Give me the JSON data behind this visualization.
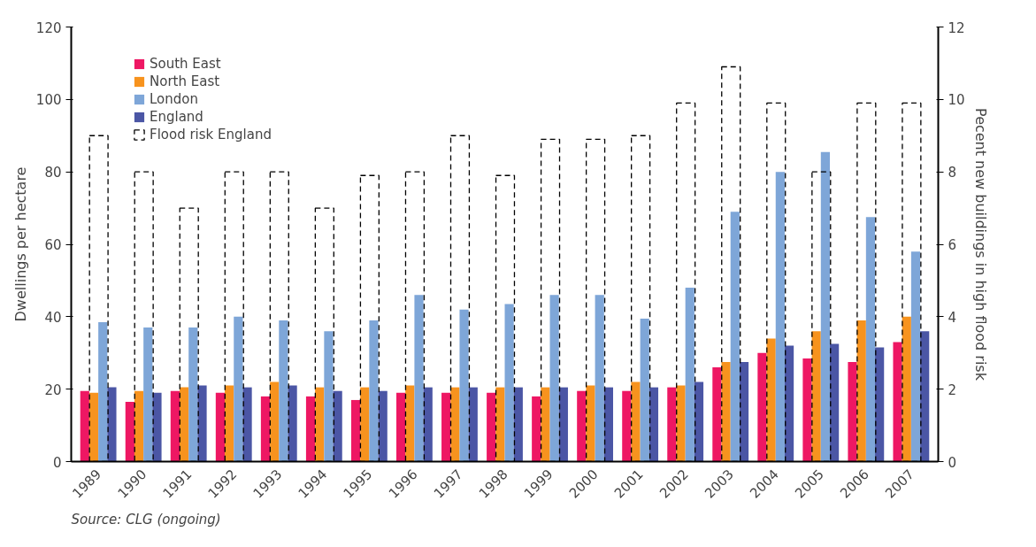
{
  "chart_data": {
    "type": "bar",
    "ylabel": "Dwellings per hectare",
    "y2label": "Pecent new buildings in high flood risk",
    "categories": [
      "1989",
      "1990",
      "1991",
      "1992",
      "1993",
      "1994",
      "1995",
      "1996",
      "1997",
      "1998",
      "1999",
      "2000",
      "2001",
      "2002",
      "2003",
      "2004",
      "2005",
      "2006",
      "2007"
    ],
    "series": [
      {
        "name": "South East",
        "color": "#ee1763",
        "values": [
          19.5,
          16.5,
          19.5,
          19,
          18,
          18,
          17,
          19,
          19,
          19,
          18,
          19.5,
          19.5,
          20.5,
          26,
          30,
          28.5,
          27.5,
          33
        ]
      },
      {
        "name": "North East",
        "color": "#f7931e",
        "values": [
          19,
          19.5,
          20.5,
          21,
          22,
          20.5,
          20.5,
          21,
          20.5,
          20.5,
          20.5,
          21,
          22,
          21,
          27.5,
          34,
          36,
          39,
          40
        ]
      },
      {
        "name": "London",
        "color": "#7ea6d8",
        "values": [
          38.5,
          37,
          37,
          40,
          39,
          36,
          39,
          46,
          42,
          43.5,
          46,
          46,
          39.5,
          48,
          69,
          80,
          85.5,
          67.5,
          58
        ]
      },
      {
        "name": "England",
        "color": "#4b56a5",
        "values": [
          20.5,
          19,
          21,
          20.5,
          21,
          19.5,
          19.5,
          20.5,
          20.5,
          20.5,
          20.5,
          20.5,
          20.5,
          22,
          27.5,
          32,
          32.5,
          31.5,
          36
        ]
      },
      {
        "name": "Flood risk England",
        "color": "#000000",
        "axis": "y2",
        "line_style": "dashed",
        "values": [
          9,
          8,
          7,
          8,
          8,
          7,
          7.9,
          8,
          9,
          7.9,
          8.9,
          8.9,
          9,
          9.9,
          10.9,
          9.9,
          8,
          9.9,
          9.9
        ]
      }
    ],
    "ylim": [
      0,
      120
    ],
    "yticks": [
      0,
      20,
      40,
      60,
      80,
      100,
      120
    ],
    "y2lim": [
      0,
      12
    ],
    "y2ticks": [
      0,
      2,
      4,
      6,
      8,
      10,
      12
    ],
    "grid": false,
    "legend": "top left",
    "annotations": [
      "Source: CLG (ongoing)"
    ]
  }
}
